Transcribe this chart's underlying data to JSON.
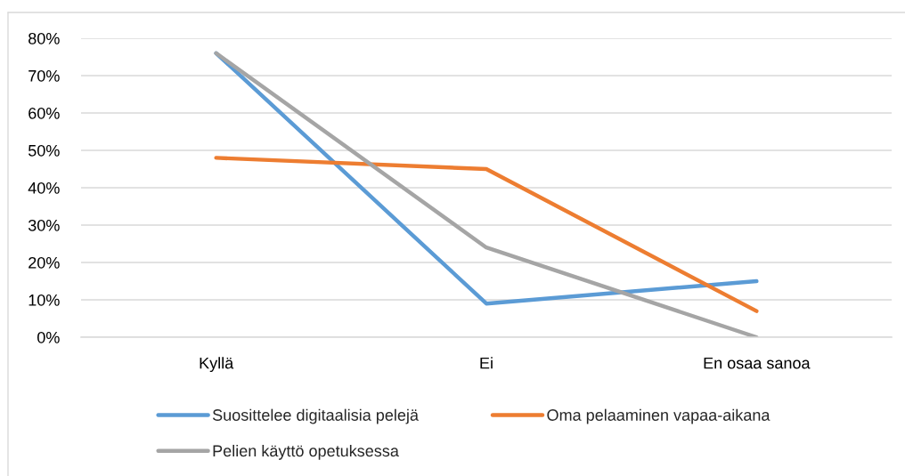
{
  "chart_data": {
    "type": "line",
    "categories": [
      "Kyllä",
      "Ei",
      "En osaa sanoa"
    ],
    "series": [
      {
        "name": "Suosittelee digitaalisia pelejä",
        "color": "#5b9bd5",
        "values": [
          76,
          9,
          15
        ]
      },
      {
        "name": "Oma pelaaminen vapaa-aikana",
        "color": "#ed7d31",
        "values": [
          48,
          45,
          7
        ]
      },
      {
        "name": "Pelien käyttö opetuksessa",
        "color": "#a5a5a5",
        "values": [
          76,
          24,
          0
        ]
      }
    ],
    "ylim": [
      0,
      80
    ],
    "yticks": [
      {
        "value": 0,
        "label": "0%"
      },
      {
        "value": 10,
        "label": "10%"
      },
      {
        "value": 20,
        "label": "20%"
      },
      {
        "value": 30,
        "label": "30%"
      },
      {
        "value": 40,
        "label": "40%"
      },
      {
        "value": 50,
        "label": "50%"
      },
      {
        "value": 60,
        "label": "60%"
      },
      {
        "value": 70,
        "label": "70%"
      },
      {
        "value": 80,
        "label": "80%"
      }
    ],
    "grid": "y",
    "legend": "bottom",
    "marker": "none",
    "line_style": "solid"
  }
}
